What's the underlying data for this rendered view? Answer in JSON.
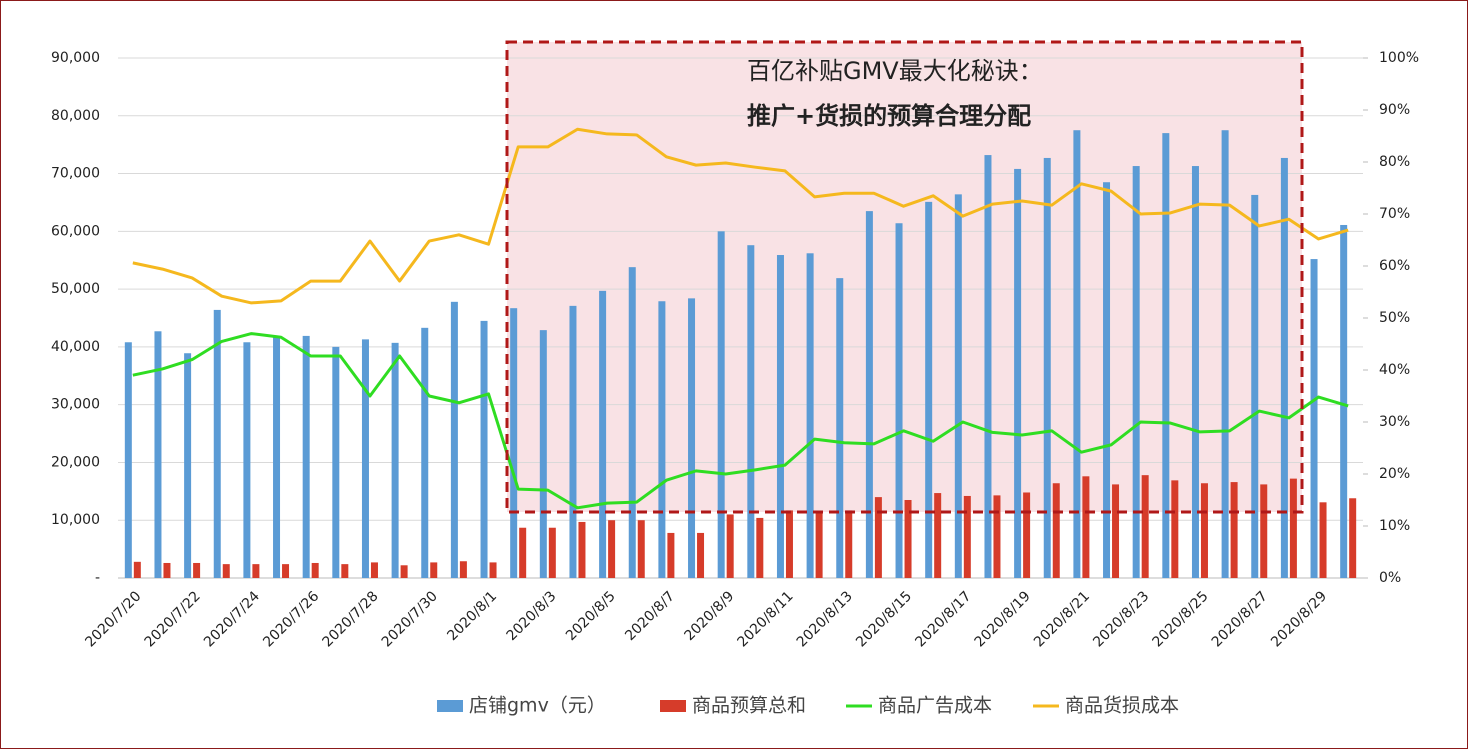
{
  "chart_data": {
    "type": "bar+line",
    "annotations": [
      "百亿补贴GMV最大化秘诀：",
      "推广+货损的预算合理分配"
    ],
    "categories": [
      "2020/7/20",
      null,
      "2020/7/22",
      null,
      "2020/7/24",
      null,
      "2020/7/26",
      null,
      "2020/7/28",
      null,
      "2020/7/30",
      null,
      "2020/8/1",
      null,
      "2020/8/3",
      null,
      "2020/8/5",
      null,
      "2020/8/7",
      null,
      "2020/8/9",
      null,
      "2020/8/11",
      null,
      "2020/8/13",
      null,
      "2020/8/15",
      null,
      "2020/8/17",
      null,
      "2020/8/19",
      null,
      "2020/8/21",
      null,
      "2020/8/23",
      null,
      "2020/8/25",
      null,
      "2020/8/27",
      null,
      "2020/8/29",
      null
    ],
    "series": [
      {
        "name": "店铺gmv（元）",
        "type": "bar",
        "color": "#5b9bd5",
        "values": [
          40800,
          42700,
          38900,
          46400,
          40800,
          41900,
          41900,
          40000,
          41300,
          40700,
          43300,
          47800,
          44500,
          46700,
          42900,
          47100,
          49700,
          53800,
          47900,
          48400,
          60000,
          57600,
          55900,
          56200,
          51900,
          63500,
          61400,
          65100,
          66400,
          73200,
          70800,
          72700,
          77500,
          68500,
          71300,
          77000,
          71300,
          77500,
          66300,
          72700,
          55200,
          61100
        ]
      },
      {
        "name": "商品预算总和",
        "type": "bar",
        "color": "#d63c2a",
        "values": [
          2800,
          2600,
          2600,
          2400,
          2400,
          2400,
          2600,
          2400,
          2700,
          2200,
          2700,
          2900,
          2700,
          8700,
          8700,
          9700,
          10000,
          10000,
          7800,
          7800,
          11000,
          10400,
          11700,
          11200,
          11700,
          14000,
          13500,
          14700,
          14200,
          14300,
          14800,
          16400,
          17600,
          16200,
          17800,
          16900,
          16400,
          16600,
          16200,
          17200,
          13100,
          13800
        ]
      },
      {
        "name": "商品广告成本",
        "type": "line",
        "axis": "y2",
        "color": "#2fdd22",
        "values": [
          39,
          40.2,
          42,
          45.5,
          47,
          46.3,
          42.7,
          42.7,
          35,
          42.7,
          35,
          33.7,
          35.4,
          17.1,
          16.9,
          13.5,
          14.4,
          14.6,
          18.8,
          20.6,
          20,
          20.8,
          21.7,
          26.7,
          26,
          25.8,
          28.3,
          26.3,
          30,
          28,
          27.5,
          28.3,
          24.2,
          25.6,
          30,
          29.8,
          28.1,
          28.3,
          32.1,
          30.8,
          34.8,
          33.1
        ]
      },
      {
        "name": "商品货损成本",
        "type": "line",
        "axis": "y2",
        "color": "#f5b81e",
        "values": [
          60.6,
          59.4,
          57.7,
          54.2,
          52.9,
          53.3,
          57.1,
          57.1,
          64.8,
          57.1,
          64.8,
          66,
          64.2,
          82.9,
          82.9,
          86.3,
          85.4,
          85.2,
          81,
          79.4,
          79.8,
          79,
          78.3,
          73.3,
          74,
          74,
          71.5,
          73.5,
          69.6,
          71.9,
          72.5,
          71.7,
          75.8,
          74.4,
          70,
          70.2,
          71.9,
          71.7,
          67.7,
          69,
          65.2,
          66.9
        ]
      }
    ],
    "ylim": [
      0,
      90000
    ],
    "yticks": [
      {
        "value": 0,
        "label": "-"
      },
      {
        "value": 10000,
        "label": "10,000"
      },
      {
        "value": 20000,
        "label": "20,000"
      },
      {
        "value": 30000,
        "label": "30,000"
      },
      {
        "value": 40000,
        "label": "40,000"
      },
      {
        "value": 50000,
        "label": "50,000"
      },
      {
        "value": 60000,
        "label": "60,000"
      },
      {
        "value": 70000,
        "label": "70,000"
      },
      {
        "value": 80000,
        "label": "80,000"
      },
      {
        "value": 90000,
        "label": "90,000"
      }
    ],
    "y2lim": [
      0,
      100
    ],
    "y2ticks": [
      {
        "value": 0,
        "label": "0%"
      },
      {
        "value": 10,
        "label": "10%"
      },
      {
        "value": 20,
        "label": "20%"
      },
      {
        "value": 30,
        "label": "30%"
      },
      {
        "value": 40,
        "label": "40%"
      },
      {
        "value": 50,
        "label": "50%"
      },
      {
        "value": 60,
        "label": "60%"
      },
      {
        "value": 70,
        "label": "70%"
      },
      {
        "value": 80,
        "label": "80%"
      },
      {
        "value": 90,
        "label": "90%"
      },
      {
        "value": 100,
        "label": "100%"
      }
    ],
    "grid": true,
    "legend": "bottom"
  }
}
